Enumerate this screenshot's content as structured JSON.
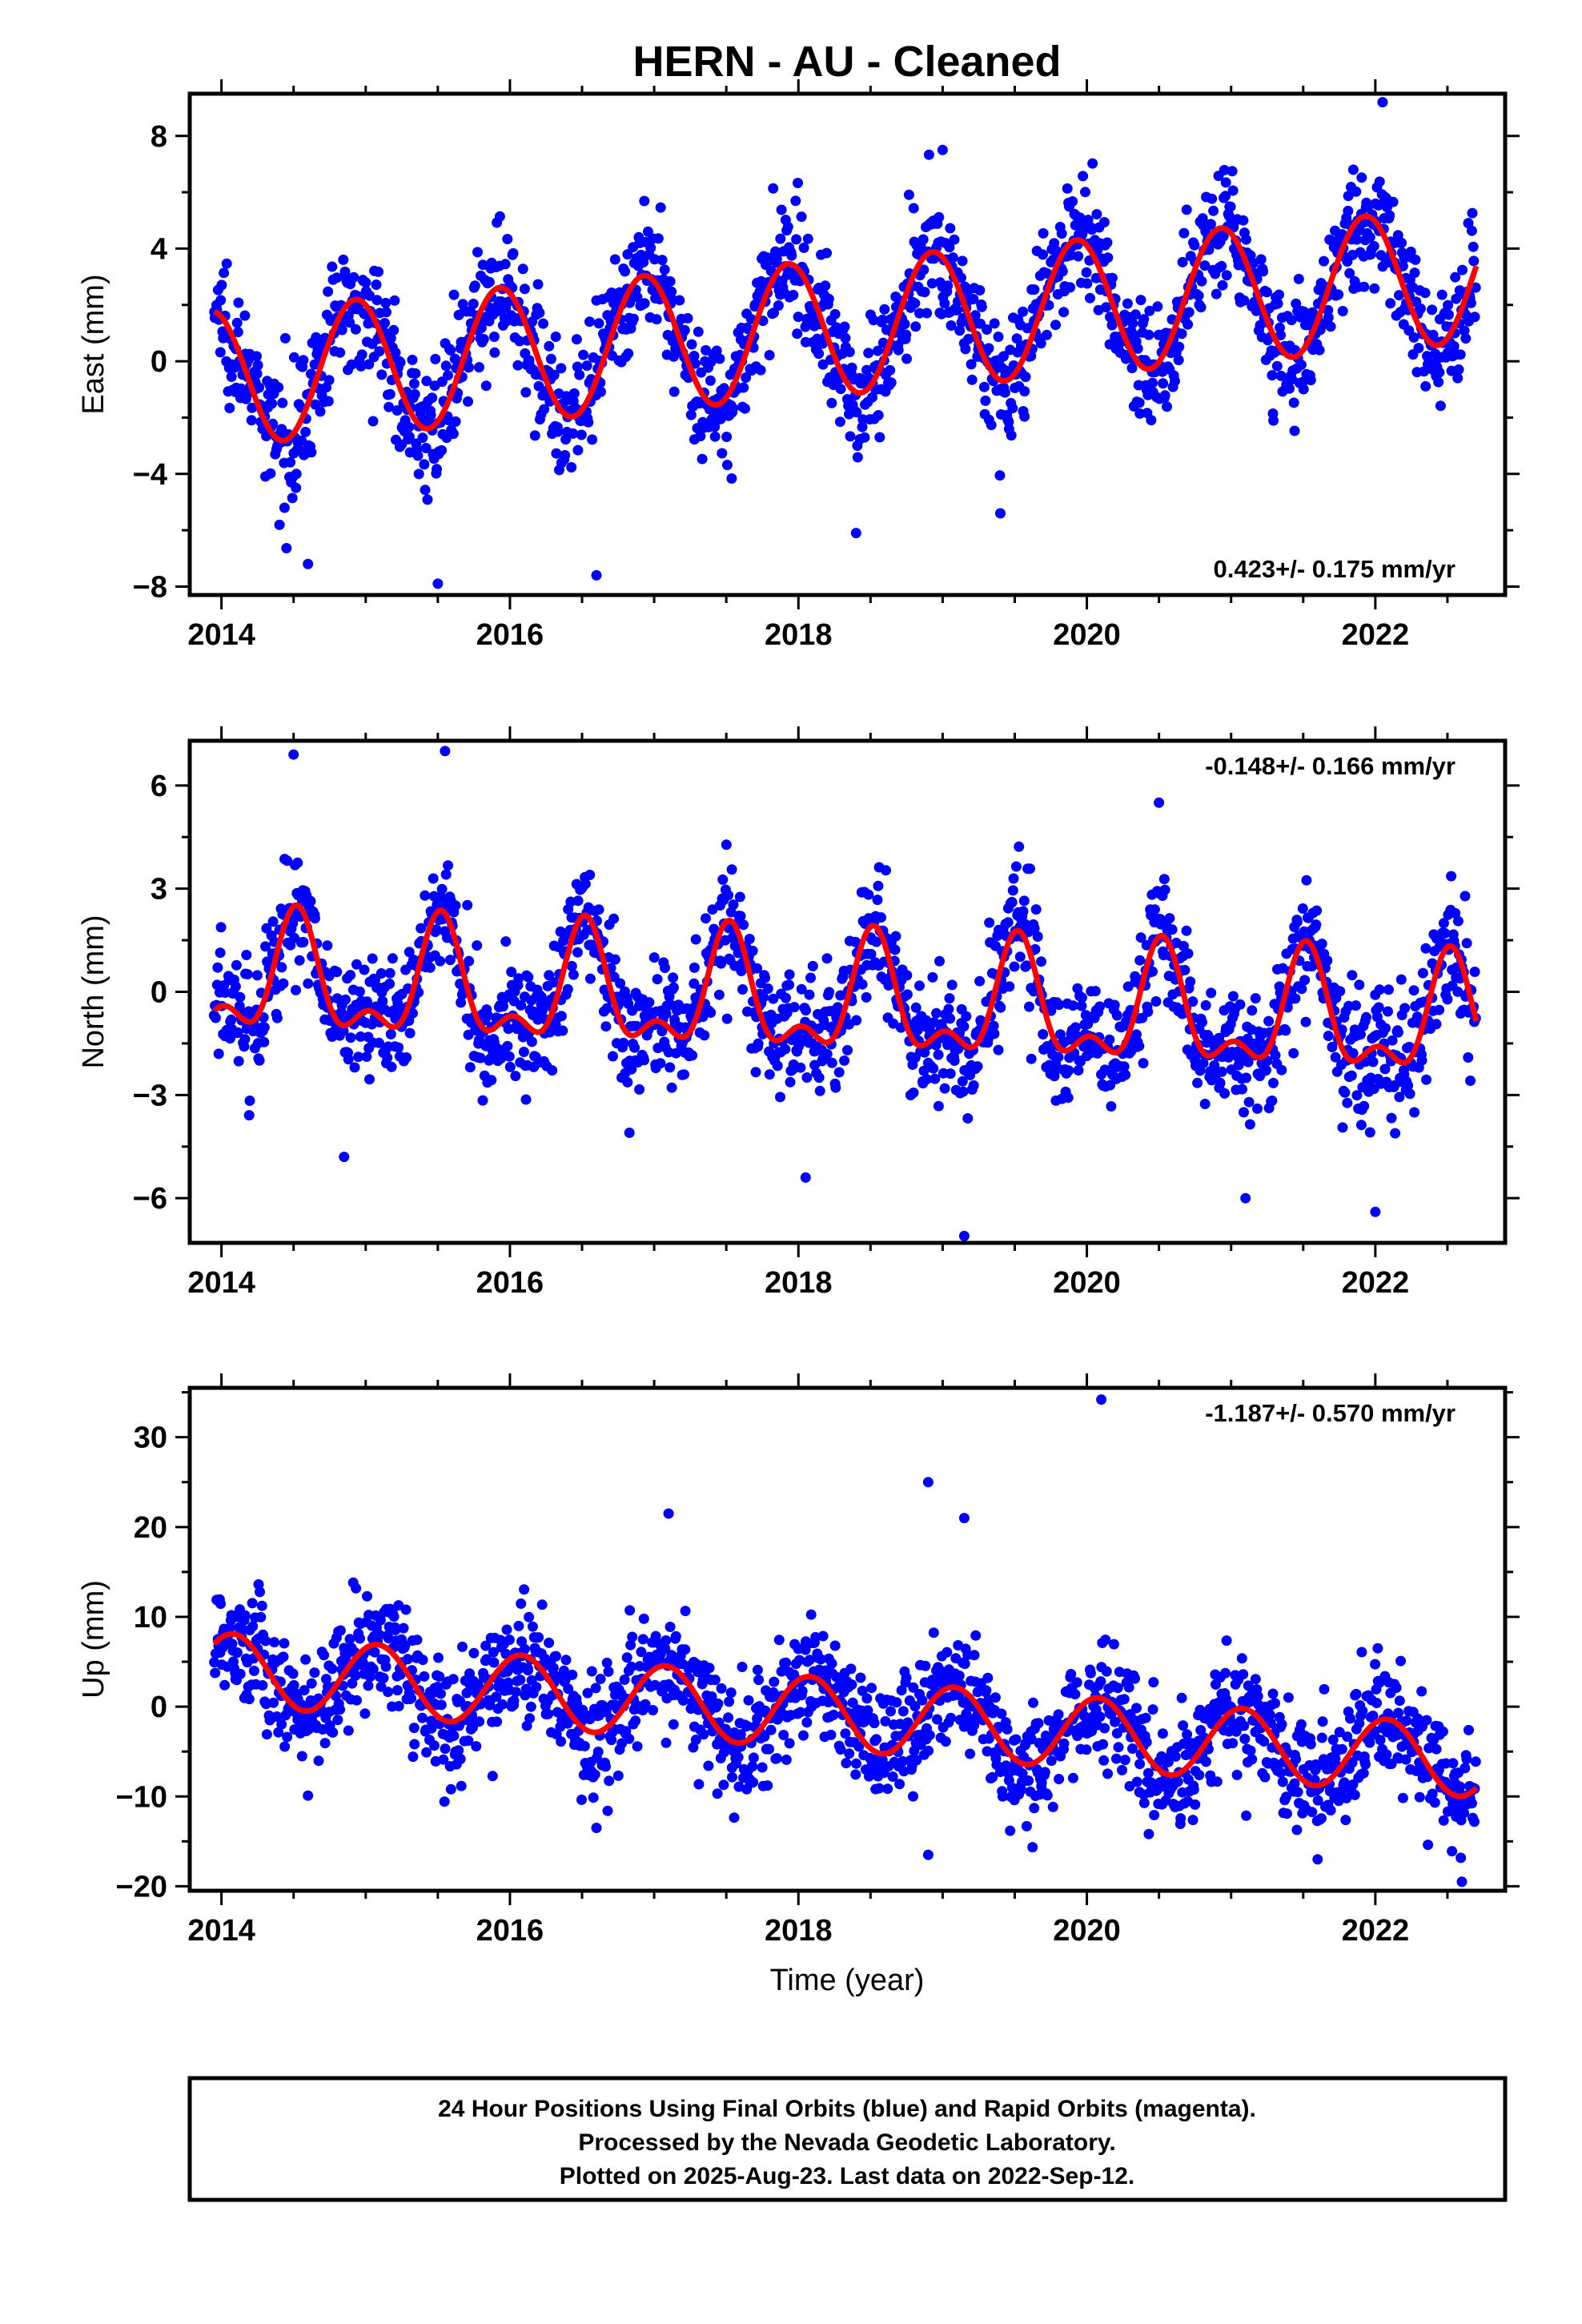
{
  "figure": {
    "title": "HERN  - AU - Cleaned",
    "xlabel": "Time (year)",
    "footer": [
      "24 Hour Positions Using Final Orbits (blue) and Rapid Orbits (magenta).",
      "Processed by the Nevada Geodetic Laboratory.",
      "Plotted on 2025-Aug-23. Last data on 2022-Sep-12."
    ]
  },
  "chart_data": [
    {
      "type": "scatter",
      "component": "east",
      "ylabel": "East (mm)",
      "rate_label": "0.423+/- 0.175 mm/yr",
      "xlim": [
        2013.78,
        2022.9
      ],
      "ylim": [
        -8.3,
        9.5
      ],
      "x_ticks": [
        2014,
        2016,
        2018,
        2020,
        2022
      ],
      "y_ticks": [
        -8,
        -4,
        0,
        4,
        8
      ],
      "dot_color": "#0000ff",
      "fit_color": "#ff0000",
      "trend_model": {
        "t0": 2014.0,
        "offset": -0.6,
        "rate": 0.423,
        "annual_amplitude": 2.4,
        "annual_peak_year_fraction": 0.93
      },
      "data_span": [
        2013.95,
        2022.7
      ],
      "scatter_sigma_mm": 1.1,
      "extreme_points": [
        {
          "x": 2022.05,
          "y": 9.2
        },
        {
          "x": 2019.0,
          "y": 7.5
        },
        {
          "x": 2016.0,
          "y": 2.7
        },
        {
          "x": 2015.5,
          "y": -7.9
        },
        {
          "x": 2016.6,
          "y": -7.6
        },
        {
          "x": 2018.4,
          "y": -6.1
        },
        {
          "x": 2014.6,
          "y": -7.2
        },
        {
          "x": 2019.4,
          "y": -5.4
        }
      ]
    },
    {
      "type": "scatter",
      "component": "north",
      "ylabel": "North (mm)",
      "rate_label": "-0.148+/- 0.166 mm/yr",
      "xlim": [
        2013.78,
        2022.9
      ],
      "ylim": [
        -7.3,
        7.3
      ],
      "x_ticks": [
        2014,
        2016,
        2018,
        2020,
        2022
      ],
      "y_ticks": [
        -6,
        -3,
        0,
        3,
        6
      ],
      "dot_color": "#0000ff",
      "fit_color": "#ff0000",
      "trend_model": {
        "t0": 2014.0,
        "offset": 0.3,
        "rate": -0.148,
        "annual_amplitude": 1.5,
        "annual_peak_year_fraction": 0.52,
        "semiannual_amplitude": 0.8
      },
      "data_span": [
        2013.95,
        2022.7
      ],
      "scatter_sigma_mm": 0.9,
      "extreme_points": [
        {
          "x": 2014.5,
          "y": 6.9
        },
        {
          "x": 2015.55,
          "y": 7.0
        },
        {
          "x": 2020.5,
          "y": 5.5
        },
        {
          "x": 2019.15,
          "y": -7.1
        },
        {
          "x": 2022.0,
          "y": -6.4
        },
        {
          "x": 2014.85,
          "y": -4.8
        },
        {
          "x": 2021.1,
          "y": -6.0
        },
        {
          "x": 2018.05,
          "y": -5.4
        }
      ]
    },
    {
      "type": "scatter",
      "component": "up",
      "ylabel": "Up (mm)",
      "rate_label": "-1.187+/- 0.570 mm/yr",
      "xlim": [
        2013.78,
        2022.9
      ],
      "ylim": [
        -20.5,
        35.5
      ],
      "x_ticks": [
        2014,
        2016,
        2018,
        2020,
        2022
      ],
      "y_ticks": [
        -20,
        -10,
        0,
        10,
        20,
        30
      ],
      "dot_color": "#0000ff",
      "fit_color": "#ff0000",
      "trend_model": {
        "t0": 2014.0,
        "offset": 4.2,
        "rate": -1.187,
        "annual_amplitude": 4.0,
        "annual_peak_year_fraction": 0.08
      },
      "data_span": [
        2013.95,
        2022.7
      ],
      "scatter_sigma_mm": 3.3,
      "extreme_points": [
        {
          "x": 2020.1,
          "y": 34.2
        },
        {
          "x": 2018.9,
          "y": 25.0
        },
        {
          "x": 2017.1,
          "y": 21.5
        },
        {
          "x": 2019.15,
          "y": 21.0
        },
        {
          "x": 2022.6,
          "y": -19.5
        },
        {
          "x": 2018.9,
          "y": -16.5
        },
        {
          "x": 2016.6,
          "y": -13.5
        },
        {
          "x": 2021.6,
          "y": -17.0
        }
      ]
    }
  ]
}
